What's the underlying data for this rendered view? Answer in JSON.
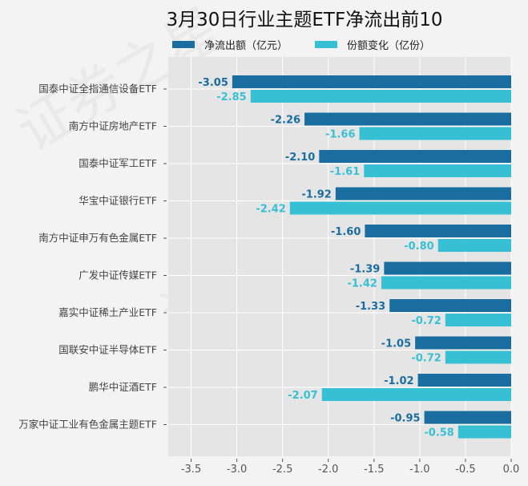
{
  "chart_data": {
    "type": "bar",
    "orientation": "horizontal",
    "title": "3月30日行业主题ETF净流出前10",
    "categories": [
      "国泰中证全指通信设备ETF",
      "南方中证房地产ETF",
      "国泰中证军工ETF",
      "华宝中证银行ETF",
      "南方中证申万有色金属ETF",
      "广发中证传媒ETF",
      "嘉实中证稀土产业ETF",
      "国联安中证半导体ETF",
      "鹏华中证酒ETF",
      "万家中证工业有色金属主题ETF"
    ],
    "series": [
      {
        "name": "净流出额（亿元）",
        "color": "#1a6e9f",
        "values": [
          -3.05,
          -2.26,
          -2.1,
          -1.92,
          -1.6,
          -1.39,
          -1.33,
          -1.05,
          -1.02,
          -0.95
        ]
      },
      {
        "name": "份额变化（亿份）",
        "color": "#37c0d4",
        "values": [
          -2.85,
          -1.66,
          -1.61,
          -2.42,
          -0.8,
          -1.42,
          -0.72,
          -0.72,
          -2.07,
          -0.58
        ]
      }
    ],
    "xlim": [
      -3.75,
      0
    ],
    "xticks": [
      -3.5,
      -3.0,
      -2.5,
      -2.0,
      -1.5,
      -1.0,
      -0.5,
      0.0
    ],
    "xlabel": "",
    "ylabel": "",
    "grid": true,
    "legend_position": "top"
  }
}
